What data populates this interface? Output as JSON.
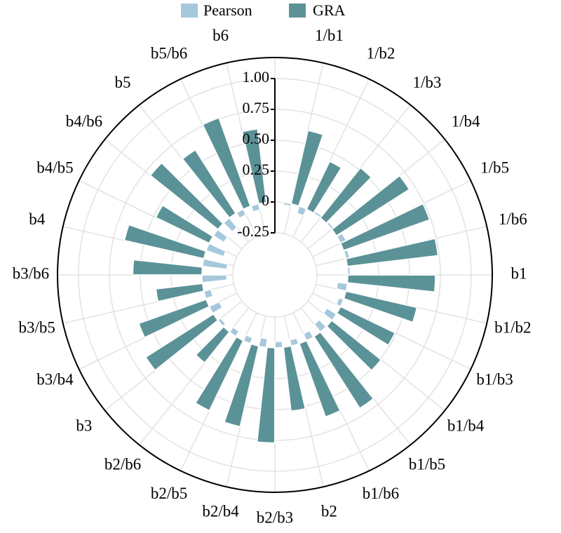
{
  "chart_data": {
    "type": "bar",
    "subtype": "radial-grouped-bar",
    "categories": [
      "1/b1",
      "1/b2",
      "1/b3",
      "1/b4",
      "1/b5",
      "1/b6",
      "b1",
      "b1/b2",
      "b1/b3",
      "b1/b4",
      "b1/b5",
      "b1/b6",
      "b2",
      "b2/b3",
      "b2/b4",
      "b2/b5",
      "b2/b6",
      "b3",
      "b3/b4",
      "b3/b5",
      "b3/b6",
      "b4",
      "b4/b5",
      "b4/b6",
      "b5",
      "b5/b6",
      "b6"
    ],
    "series": [
      {
        "name": "Pearson",
        "color": "#a6c8dc",
        "values": [
          -0.02,
          -0.06,
          0.02,
          0.02,
          0.05,
          0.03,
          0.02,
          -0.08,
          -0.04,
          -0.09,
          -0.08,
          -0.06,
          -0.05,
          -0.05,
          -0.07,
          -0.05,
          -0.05,
          -0.03,
          -0.09,
          -0.06,
          -0.2,
          -0.2,
          -0.15,
          -0.1,
          -0.1,
          -0.05,
          -0.05
        ]
      },
      {
        "name": "GRA",
        "color": "#5b9297",
        "values": [
          0.61,
          0.43,
          0.52,
          0.7,
          0.74,
          0.74,
          0.71,
          0.59,
          0.49,
          0.51,
          0.69,
          0.63,
          0.52,
          0.77,
          0.67,
          0.63,
          0.32,
          0.65,
          0.58,
          0.38,
          0.56,
          0.66,
          0.48,
          0.7,
          0.61,
          0.76,
          0.6
        ]
      }
    ],
    "ylim": [
      -0.25,
      1.0
    ],
    "yticks": [
      "-0.25",
      "0",
      "0.25",
      "0.50",
      "0.75",
      "1.00"
    ],
    "grid": true,
    "legend": {
      "position": "top",
      "entries": [
        "Pearson",
        "GRA"
      ]
    }
  }
}
